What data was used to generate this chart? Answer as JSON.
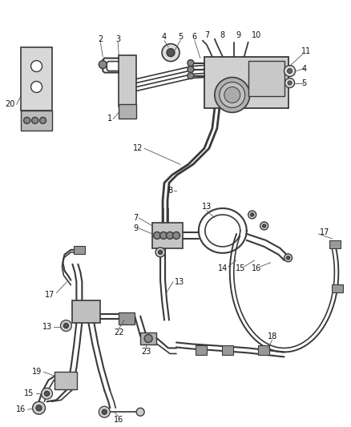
{
  "bg_color": "#ffffff",
  "line_color": "#3a3a3a",
  "label_color": "#111111",
  "label_fontsize": 7.0,
  "fig_width": 4.38,
  "fig_height": 5.33,
  "dpi": 100
}
